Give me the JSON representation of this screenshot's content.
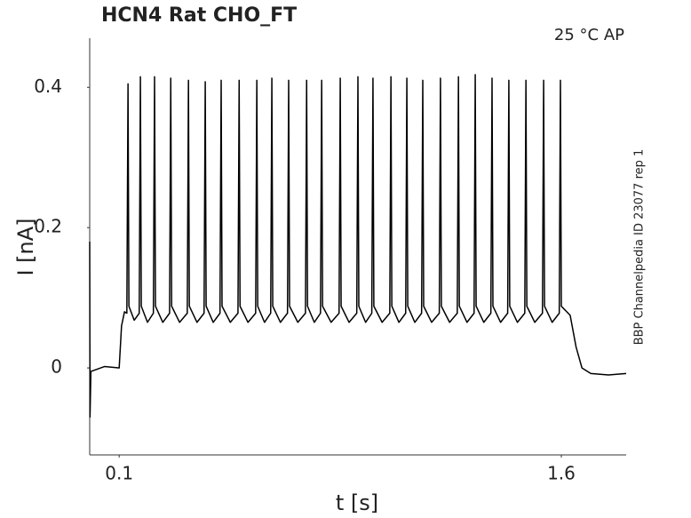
{
  "chart_data": {
    "type": "line",
    "title": "HCN4  Rat  CHO_FT",
    "annotation": "25 °C  AP",
    "side_note": "BBP Channelpedia ID 23077 rep 1",
    "xlabel": "t [s]",
    "ylabel": "I [nA]",
    "color": "#000000",
    "grid": false,
    "xlim": [
      0,
      1.82
    ],
    "ylim": [
      -0.124,
      0.47
    ],
    "xticks": [
      0.1,
      1.6
    ],
    "yticks": [
      0,
      0.2,
      0.4
    ],
    "x": [
      0,
      0.001,
      0.004,
      0.05,
      0.1,
      0.108,
      0.118,
      0.126,
      0.13,
      0.133,
      0.151,
      0.168,
      0.172,
      0.175,
      0.196,
      0.216,
      0.22,
      0.223,
      0.248,
      0.271,
      0.275,
      0.278,
      0.305,
      0.331,
      0.335,
      0.338,
      0.364,
      0.388,
      0.392,
      0.395,
      0.419,
      0.442,
      0.446,
      0.449,
      0.477,
      0.503,
      0.507,
      0.51,
      0.537,
      0.563,
      0.567,
      0.57,
      0.593,
      0.614,
      0.618,
      0.621,
      0.647,
      0.671,
      0.675,
      0.678,
      0.706,
      0.732,
      0.736,
      0.739,
      0.762,
      0.783,
      0.787,
      0.79,
      0.819,
      0.846,
      0.85,
      0.853,
      0.88,
      0.906,
      0.91,
      0.913,
      0.936,
      0.957,
      0.961,
      0.964,
      0.992,
      1.018,
      1.022,
      1.025,
      1.049,
      1.072,
      1.076,
      1.079,
      1.103,
      1.126,
      1.13,
      1.133,
      1.16,
      1.186,
      1.19,
      1.193,
      1.221,
      1.247,
      1.251,
      1.254,
      1.28,
      1.304,
      1.308,
      1.311,
      1.337,
      1.361,
      1.365,
      1.368,
      1.394,
      1.418,
      1.422,
      1.425,
      1.451,
      1.476,
      1.48,
      1.483,
      1.51,
      1.536,
      1.54,
      1.543,
      1.569,
      1.593,
      1.597,
      1.6,
      1.63,
      1.65,
      1.67,
      1.7,
      1.76,
      1.82
    ],
    "values": [
      0.18,
      -0.07,
      -0.005,
      0.002,
      0.0,
      0.06,
      0.08,
      0.078,
      0.405,
      0.088,
      0.068,
      0.078,
      0.415,
      0.088,
      0.065,
      0.078,
      0.415,
      0.088,
      0.065,
      0.078,
      0.413,
      0.088,
      0.065,
      0.078,
      0.41,
      0.088,
      0.065,
      0.078,
      0.408,
      0.088,
      0.065,
      0.078,
      0.41,
      0.088,
      0.065,
      0.078,
      0.41,
      0.088,
      0.065,
      0.078,
      0.41,
      0.088,
      0.065,
      0.078,
      0.413,
      0.088,
      0.065,
      0.078,
      0.41,
      0.088,
      0.065,
      0.078,
      0.41,
      0.088,
      0.065,
      0.078,
      0.41,
      0.088,
      0.065,
      0.078,
      0.413,
      0.088,
      0.065,
      0.078,
      0.415,
      0.088,
      0.065,
      0.078,
      0.413,
      0.088,
      0.065,
      0.078,
      0.415,
      0.088,
      0.065,
      0.078,
      0.413,
      0.088,
      0.065,
      0.078,
      0.41,
      0.088,
      0.065,
      0.078,
      0.413,
      0.088,
      0.065,
      0.078,
      0.415,
      0.088,
      0.065,
      0.078,
      0.418,
      0.088,
      0.065,
      0.078,
      0.413,
      0.088,
      0.065,
      0.078,
      0.41,
      0.088,
      0.065,
      0.078,
      0.41,
      0.088,
      0.065,
      0.078,
      0.41,
      0.088,
      0.065,
      0.078,
      0.41,
      0.088,
      0.075,
      0.03,
      0.0,
      -0.008,
      -0.01,
      -0.008
    ]
  }
}
